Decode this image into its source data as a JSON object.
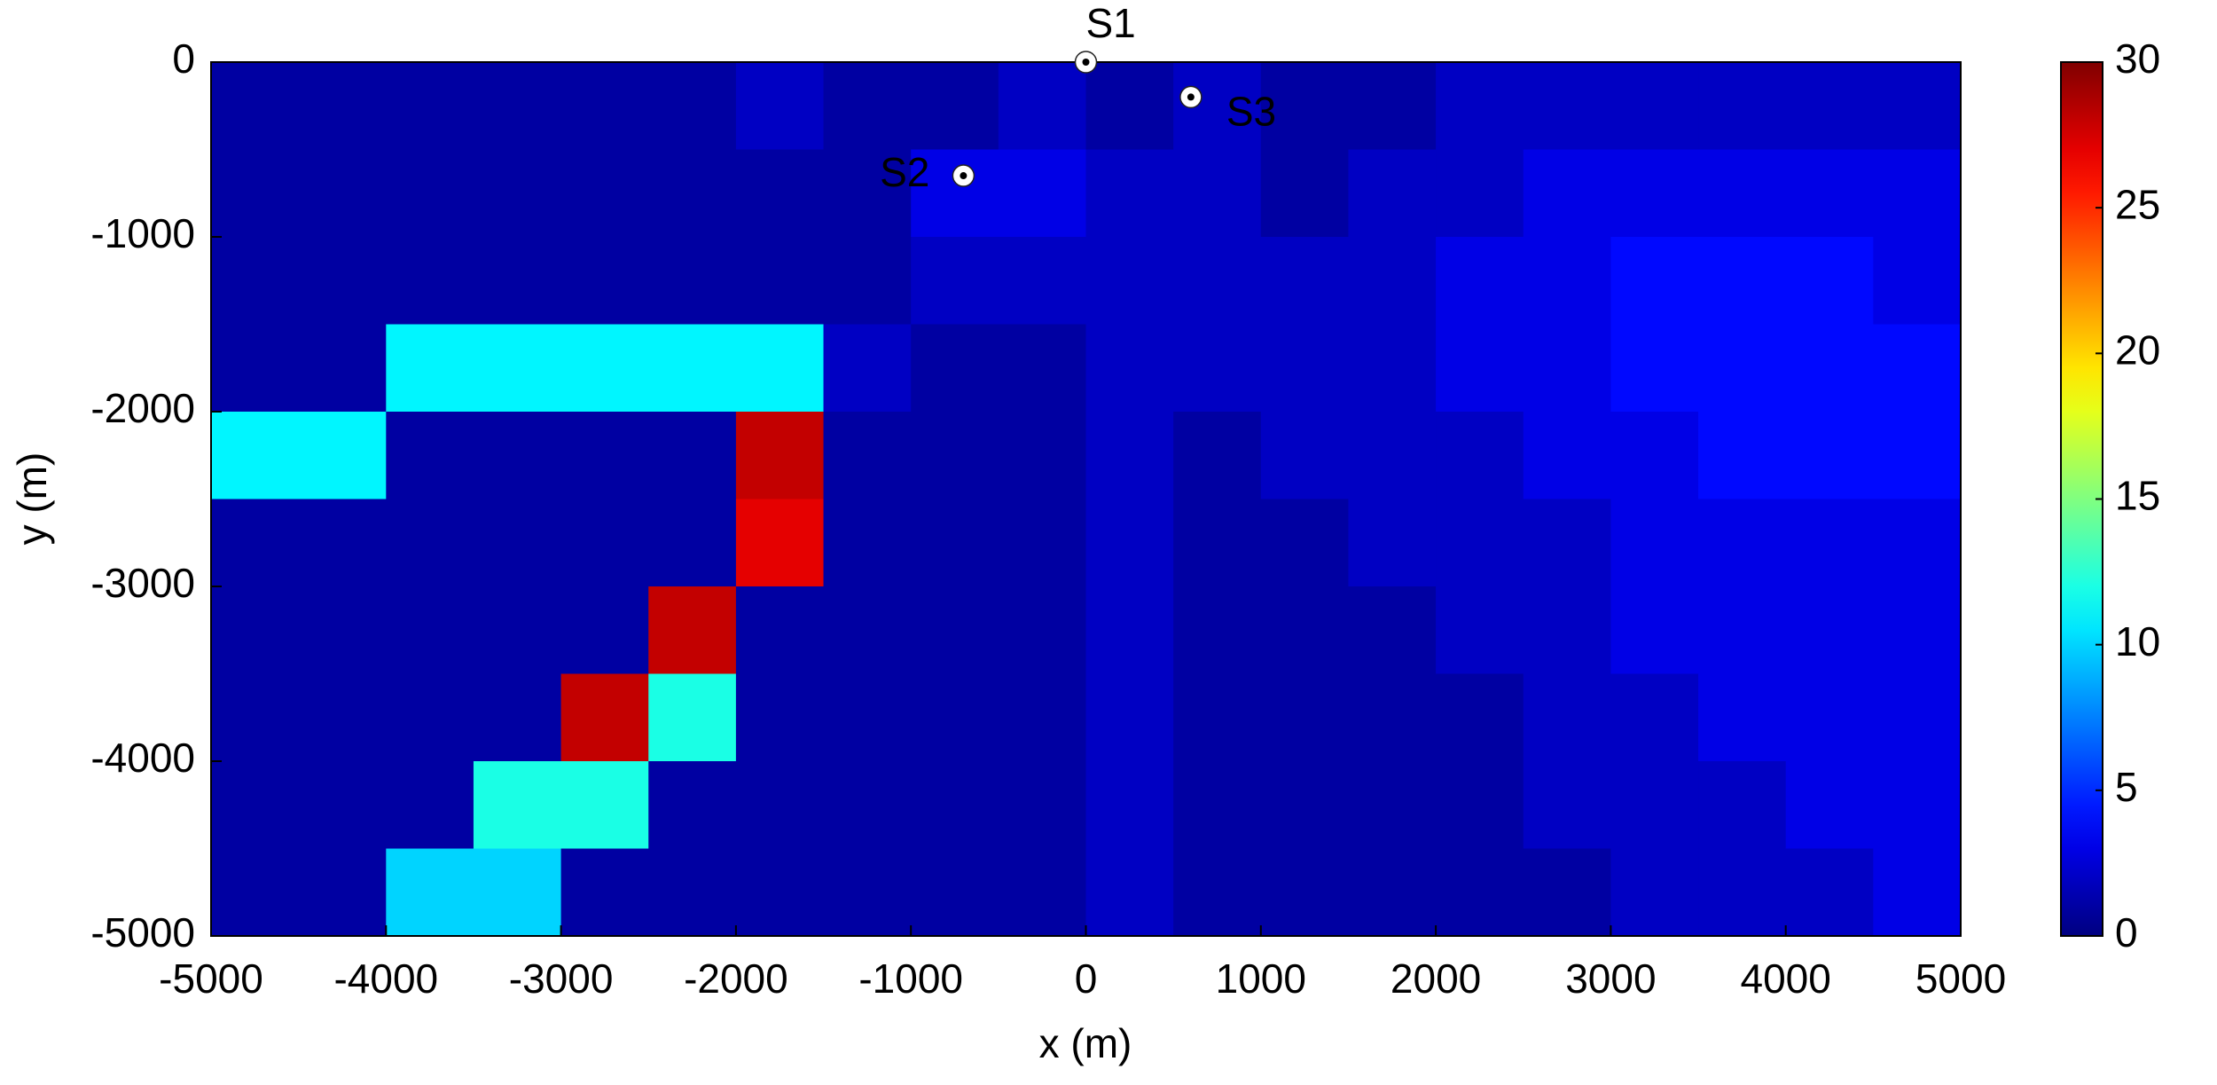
{
  "chart_data": {
    "type": "heatmap",
    "xlabel": "x (m)",
    "ylabel": "y (m)",
    "xlim": [
      -5000,
      5000
    ],
    "ylim": [
      -5000,
      0
    ],
    "xticks": [
      -5000,
      -4000,
      -3000,
      -2000,
      -1000,
      0,
      1000,
      2000,
      3000,
      4000,
      5000
    ],
    "yticks": [
      -5000,
      -4000,
      -3000,
      -2000,
      -1000,
      0
    ],
    "x": [
      -4750,
      -4250,
      -3750,
      -3250,
      -2750,
      -2250,
      -1750,
      -1250,
      -750,
      -250,
      250,
      750,
      1250,
      1750,
      2250,
      2750,
      3250,
      3750,
      4250,
      4750
    ],
    "y": [
      -250,
      -750,
      -1250,
      -1750,
      -2250,
      -2750,
      -3250,
      -3750,
      -4250,
      -4750
    ],
    "values": [
      [
        1,
        1,
        1,
        1,
        1,
        1,
        2,
        1,
        1,
        2,
        1,
        2,
        1,
        1,
        2,
        2,
        2,
        2,
        2,
        2
      ],
      [
        1,
        1,
        1,
        1,
        1,
        1,
        1,
        1,
        3,
        3,
        2,
        2,
        1,
        2,
        2,
        3,
        3,
        3,
        3,
        3
      ],
      [
        1,
        1,
        1,
        1,
        1,
        1,
        1,
        1,
        2,
        2,
        2,
        2,
        2,
        2,
        3,
        3,
        4,
        4,
        4,
        3
      ],
      [
        1,
        1,
        11,
        11,
        11,
        11,
        11,
        2,
        1,
        1,
        2,
        2,
        2,
        2,
        3,
        3,
        4,
        4,
        4,
        4
      ],
      [
        11,
        11,
        1,
        1,
        1,
        1,
        28,
        1,
        1,
        1,
        2,
        1,
        2,
        2,
        2,
        3,
        3,
        4,
        4,
        4
      ],
      [
        1,
        1,
        1,
        1,
        1,
        1,
        27,
        1,
        1,
        1,
        2,
        1,
        1,
        2,
        2,
        2,
        3,
        3,
        3,
        3
      ],
      [
        1,
        1,
        1,
        1,
        1,
        28,
        1,
        1,
        1,
        1,
        2,
        1,
        1,
        1,
        2,
        2,
        3,
        3,
        3,
        3
      ],
      [
        1,
        1,
        1,
        1,
        28,
        12,
        1,
        1,
        1,
        1,
        2,
        1,
        1,
        1,
        1,
        2,
        2,
        3,
        3,
        3
      ],
      [
        1,
        1,
        1,
        12,
        12,
        1,
        1,
        1,
        1,
        1,
        2,
        1,
        1,
        1,
        1,
        2,
        2,
        2,
        3,
        3
      ],
      [
        1,
        1,
        10,
        10,
        1,
        1,
        1,
        1,
        1,
        1,
        2,
        1,
        1,
        1,
        1,
        1,
        2,
        2,
        2,
        3
      ]
    ],
    "colormap": "jet",
    "clim": [
      0,
      30
    ],
    "colorbar_ticks": [
      0,
      5,
      10,
      15,
      20,
      25,
      30
    ],
    "points": {
      "names": [
        "S1",
        "S2",
        "S3"
      ],
      "x": [
        0,
        -700,
        600
      ],
      "y": [
        0,
        -650,
        -200
      ],
      "color": "#ffffff"
    }
  }
}
